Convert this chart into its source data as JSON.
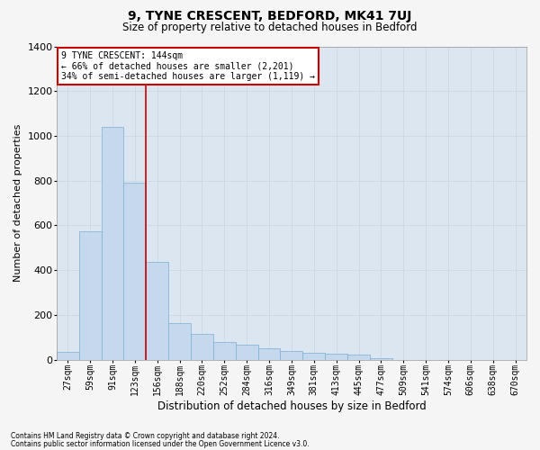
{
  "title": "9, TYNE CRESCENT, BEDFORD, MK41 7UJ",
  "subtitle": "Size of property relative to detached houses in Bedford",
  "xlabel": "Distribution of detached houses by size in Bedford",
  "ylabel": "Number of detached properties",
  "categories": [
    "27sqm",
    "59sqm",
    "91sqm",
    "123sqm",
    "156sqm",
    "188sqm",
    "220sqm",
    "252sqm",
    "284sqm",
    "316sqm",
    "349sqm",
    "381sqm",
    "413sqm",
    "445sqm",
    "477sqm",
    "509sqm",
    "541sqm",
    "574sqm",
    "606sqm",
    "638sqm",
    "670sqm"
  ],
  "values": [
    35,
    575,
    1040,
    790,
    435,
    165,
    115,
    80,
    65,
    50,
    40,
    32,
    25,
    22,
    5,
    0,
    0,
    0,
    0,
    0,
    0
  ],
  "bar_color": "#c5d8ee",
  "bar_edge_color": "#7aafd4",
  "red_line_x": 3.5,
  "annotation_text": "9 TYNE CRESCENT: 144sqm\n← 66% of detached houses are smaller (2,201)\n34% of semi-detached houses are larger (1,119) →",
  "annotation_box_facecolor": "#ffffff",
  "annotation_box_edgecolor": "#cc0000",
  "red_line_color": "#cc0000",
  "ylim": [
    0,
    1400
  ],
  "yticks": [
    0,
    200,
    400,
    600,
    800,
    1000,
    1200,
    1400
  ],
  "grid_color": "#c8d4e0",
  "plot_bg_color": "#dce6f0",
  "fig_bg_color": "#f5f5f5",
  "title_fontsize": 10,
  "subtitle_fontsize": 8.5,
  "xlabel_fontsize": 8.5,
  "ylabel_fontsize": 8,
  "tick_fontsize": 7,
  "annotation_fontsize": 7,
  "footnote1": "Contains HM Land Registry data © Crown copyright and database right 2024.",
  "footnote2": "Contains public sector information licensed under the Open Government Licence v3.0.",
  "footnote_fontsize": 5.5
}
